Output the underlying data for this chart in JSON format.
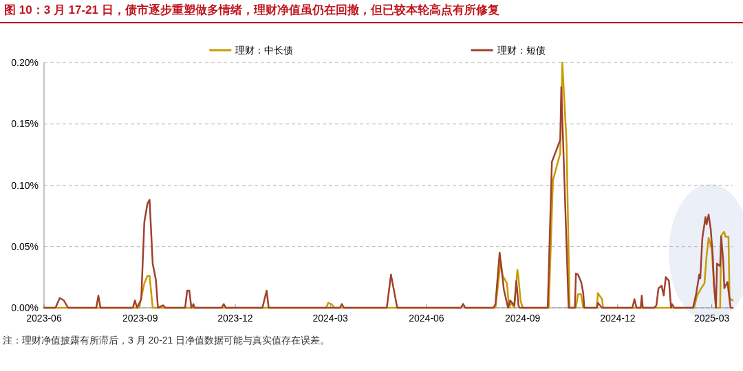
{
  "chart_data": {
    "type": "line",
    "title": "图 10：3 月 17-21 日，债市逐步重塑做多情绪，理财净值虽仍在回撤，但已较本轮高点有所修复",
    "annotations": [
      "注：理财净值披露有所滞后，3 月 20-21 日净值数据可能与真实值存在误差。"
    ],
    "xlim": [
      "2023-06-01",
      "2025-03-21"
    ],
    "xticks": [
      {
        "value": "2023-06-01",
        "label": "2023-06"
      },
      {
        "value": "2023-09-01",
        "label": "2023-09"
      },
      {
        "value": "2023-12-01",
        "label": "2023-12"
      },
      {
        "value": "2024-03-01",
        "label": "2024-03"
      },
      {
        "value": "2024-06-01",
        "label": "2024-06"
      },
      {
        "value": "2024-09-01",
        "label": "2024-09"
      },
      {
        "value": "2024-12-01",
        "label": "2024-12"
      },
      {
        "value": "2025-03-01",
        "label": "2025-03"
      }
    ],
    "ylim": [
      0,
      0.2
    ],
    "yticks": [
      {
        "value": 0,
        "label": "0.00%"
      },
      {
        "value": 0.05,
        "label": "0.05%"
      },
      {
        "value": 0.1,
        "label": "0.10%"
      },
      {
        "value": 0.15,
        "label": "0.15%"
      },
      {
        "value": 0.2,
        "label": "0.20%"
      }
    ],
    "grid": "y",
    "legend": "top",
    "line_style": "solid",
    "marker": "none",
    "series": [
      {
        "name": "理财：中长债",
        "color": "#c89b00",
        "x": [
          "2023-06-01",
          "2023-08-31",
          "2023-09-05",
          "2023-09-08",
          "2023-09-10",
          "2023-09-13",
          "2024-02-26",
          "2024-02-28",
          "2024-03-02",
          "2024-03-05",
          "2024-07-04",
          "2024-07-06",
          "2024-07-08",
          "2024-08-06",
          "2024-08-11",
          "2024-08-13",
          "2024-08-17",
          "2024-08-19",
          "2024-08-21",
          "2024-08-24",
          "2024-08-27",
          "2024-08-28",
          "2024-08-30",
          "2024-09-01",
          "2024-09-26",
          "2024-09-30",
          "2024-10-07",
          "2024-10-09",
          "2024-10-13",
          "2024-10-16",
          "2024-10-22",
          "2024-10-24",
          "2024-10-27",
          "2024-10-29",
          "2024-11-11",
          "2024-11-12",
          "2024-11-16",
          "2024-11-17",
          "2025-02-12",
          "2025-02-15",
          "2025-02-19",
          "2025-02-22",
          "2025-02-24",
          "2025-02-26",
          "2025-03-01",
          "2025-03-03",
          "2025-03-05",
          "2025-03-09",
          "2025-03-10",
          "2025-03-13",
          "2025-03-14",
          "2025-03-17",
          "2025-03-18",
          "2025-03-21"
        ],
        "values": [
          0,
          0,
          0.02,
          0.026,
          0.026,
          0,
          0,
          0.004,
          0.003,
          0,
          0,
          0.003,
          0,
          0,
          0.038,
          0.026,
          0.02,
          0,
          0.004,
          0,
          0.031,
          0.025,
          0.006,
          0,
          0,
          0.104,
          0.126,
          0.2,
          0.135,
          0,
          0,
          0.011,
          0.011,
          0,
          0,
          0.012,
          0.007,
          0,
          0,
          0.01,
          0.016,
          0.02,
          0.042,
          0.057,
          0.048,
          0.02,
          0,
          0,
          0.059,
          0.062,
          0.058,
          0.058,
          0.008,
          0.006
        ]
      },
      {
        "name": "理财：短债",
        "color": "#a0412d",
        "x": [
          "2023-06-01",
          "2023-06-12",
          "2023-06-16",
          "2023-06-20",
          "2023-06-24",
          "2023-07-21",
          "2023-07-23",
          "2023-07-25",
          "2023-08-25",
          "2023-08-27",
          "2023-08-29",
          "2023-09-02",
          "2023-09-05",
          "2023-09-08",
          "2023-09-10",
          "2023-09-13",
          "2023-09-16",
          "2023-09-18",
          "2023-09-23",
          "2023-09-25",
          "2023-10-14",
          "2023-10-16",
          "2023-10-18",
          "2023-10-20",
          "2023-10-22",
          "2023-10-23",
          "2023-11-18",
          "2023-11-20",
          "2023-11-22",
          "2023-12-27",
          "2023-12-31",
          "2024-01-02",
          "2024-03-10",
          "2024-03-12",
          "2024-03-14",
          "2024-04-24",
          "2024-04-28",
          "2024-04-30",
          "2024-05-04",
          "2024-07-04",
          "2024-07-06",
          "2024-07-08",
          "2024-08-04",
          "2024-08-06",
          "2024-08-10",
          "2024-08-14",
          "2024-08-18",
          "2024-08-20",
          "2024-08-24",
          "2024-08-26",
          "2024-08-28",
          "2024-08-29",
          "2024-09-25",
          "2024-09-29",
          "2024-10-07",
          "2024-10-08",
          "2024-10-15",
          "2024-10-21",
          "2024-10-22",
          "2024-10-24",
          "2024-10-27",
          "2024-10-29",
          "2024-10-30",
          "2024-11-11",
          "2024-11-12",
          "2024-11-16",
          "2024-12-15",
          "2024-12-17",
          "2024-12-19",
          "2024-12-23",
          "2024-12-24",
          "2024-12-25",
          "2025-01-05",
          "2025-01-07",
          "2025-01-09",
          "2025-01-12",
          "2025-01-14",
          "2025-01-16",
          "2025-01-19",
          "2025-01-21",
          "2025-01-22",
          "2025-01-24",
          "2025-02-11",
          "2025-02-14",
          "2025-02-17",
          "2025-02-18",
          "2025-02-20",
          "2025-02-23",
          "2025-02-24",
          "2025-02-26",
          "2025-02-28",
          "2025-03-02",
          "2025-03-03",
          "2025-03-05",
          "2025-03-06",
          "2025-03-09",
          "2025-03-10",
          "2025-03-12",
          "2025-03-13",
          "2025-03-16",
          "2025-03-19",
          "2025-03-21"
        ],
        "values": [
          0,
          0,
          0.008,
          0.006,
          0,
          0,
          0.01,
          0,
          0,
          0.006,
          0,
          0.007,
          0.07,
          0.085,
          0.088,
          0.036,
          0.023,
          0,
          0.002,
          0,
          0,
          0.014,
          0.014,
          0,
          0.003,
          0,
          0,
          0.003,
          0,
          0,
          0.014,
          0,
          0,
          0.003,
          0,
          0,
          0.027,
          0.018,
          0,
          0,
          0.003,
          0,
          0,
          0.003,
          0.045,
          0.015,
          0,
          0.006,
          0.002,
          0.022,
          0.002,
          0,
          0,
          0.119,
          0.137,
          0.18,
          0,
          0,
          0.028,
          0.027,
          0.021,
          0.012,
          0,
          0,
          0.004,
          0,
          0,
          0.007,
          0,
          0,
          0.01,
          0,
          0,
          0.002,
          0.016,
          0.018,
          0.01,
          0.025,
          0.022,
          0,
          0.003,
          0,
          0,
          0.011,
          0.027,
          0.024,
          0.057,
          0.074,
          0.068,
          0.076,
          0.064,
          0.042,
          0.02,
          0,
          0.036,
          0.034,
          0.058,
          0.038,
          0.016,
          0.021,
          0,
          0
        ]
      }
    ]
  }
}
